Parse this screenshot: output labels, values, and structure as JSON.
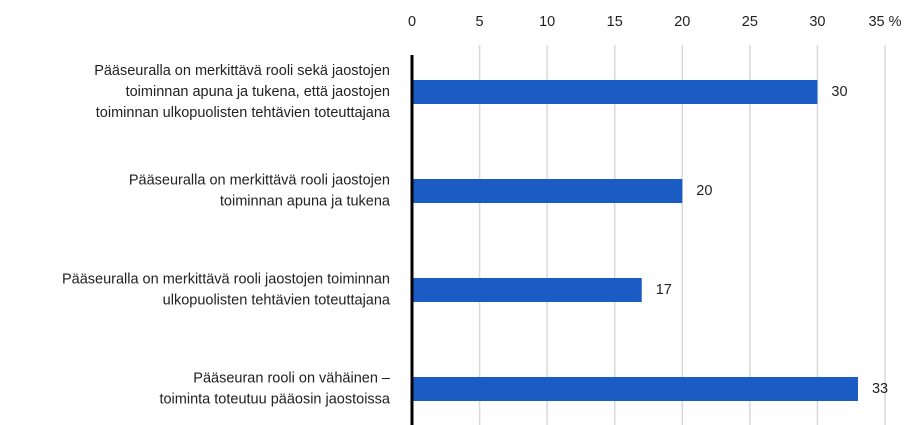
{
  "chart_data": {
    "type": "bar",
    "orientation": "horizontal",
    "categories": [
      [
        "Pääseuralla on merkittävä rooli sekä jaostojen",
        "toiminnan apuna ja tukena, että jaostojen",
        "toiminnan ulkopuolisten tehtävien toteuttajana"
      ],
      [
        "Pääseuralla on merkittävä rooli jaostojen",
        "toiminnan apuna ja tukena"
      ],
      [
        "Pääseuralla on merkittävä rooli jaostojen toiminnan",
        "ulkopuolisten tehtävien toteuttajana"
      ],
      [
        "Pääseuran rooli on vähäinen –",
        "toiminta toteutuu pääosin jaostoissa"
      ]
    ],
    "values": [
      30,
      20,
      17,
      33
    ],
    "color": "#1a5cc4",
    "xlim": [
      0,
      35
    ],
    "xticks": [
      0,
      5,
      10,
      15,
      20,
      25,
      30,
      {
        "value": 35,
        "label": "35 %"
      }
    ],
    "grid": true
  }
}
